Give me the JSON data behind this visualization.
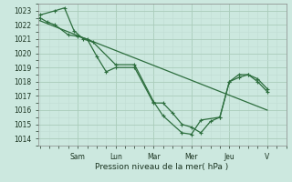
{
  "xlabel": "Pression niveau de la mer( hPa )",
  "ylim": [
    1013.5,
    1023.5
  ],
  "yticks": [
    1014,
    1015,
    1016,
    1017,
    1018,
    1019,
    1020,
    1021,
    1022,
    1023
  ],
  "day_labels": [
    "Sam",
    "Lun",
    "Mar",
    "Mer",
    "Jeu",
    "V"
  ],
  "day_positions": [
    2,
    4,
    6,
    8,
    10,
    12
  ],
  "xlim": [
    -0.1,
    13.0
  ],
  "bg_color": "#cce8df",
  "grid_major_color": "#aaccbb",
  "grid_minor_color": "#c0ddd4",
  "line_color": "#2d6e3e",
  "series1_x": [
    0,
    0.4,
    0.8,
    1.5,
    2.0,
    2.5,
    3.0,
    3.5,
    4.0,
    5.0,
    6.0,
    6.5,
    7.0,
    7.5,
    8.0,
    8.5,
    9.0,
    9.5,
    10.0,
    10.5,
    11.0,
    11.5,
    12.0
  ],
  "series1_y": [
    1022.5,
    1022.2,
    1022.0,
    1021.3,
    1021.2,
    1021.0,
    1019.8,
    1018.7,
    1019.0,
    1019.0,
    1016.5,
    1016.5,
    1015.8,
    1015.0,
    1014.8,
    1014.4,
    1015.2,
    1015.5,
    1018.0,
    1018.3,
    1018.5,
    1018.0,
    1017.3
  ],
  "series2_x": [
    0,
    0.8,
    1.3,
    1.8,
    2.3,
    2.8,
    4.0,
    5.0,
    6.0,
    6.5,
    7.5,
    8.0,
    8.5,
    9.5,
    10.0,
    10.5,
    11.0,
    11.5,
    12.0
  ],
  "series2_y": [
    1022.7,
    1023.0,
    1023.2,
    1021.6,
    1021.0,
    1020.8,
    1019.2,
    1019.2,
    1016.6,
    1015.6,
    1014.4,
    1014.3,
    1015.3,
    1015.5,
    1018.0,
    1018.5,
    1018.5,
    1018.2,
    1017.5
  ],
  "series3_x": [
    0,
    12.0
  ],
  "series3_y": [
    1022.3,
    1016.0
  ]
}
